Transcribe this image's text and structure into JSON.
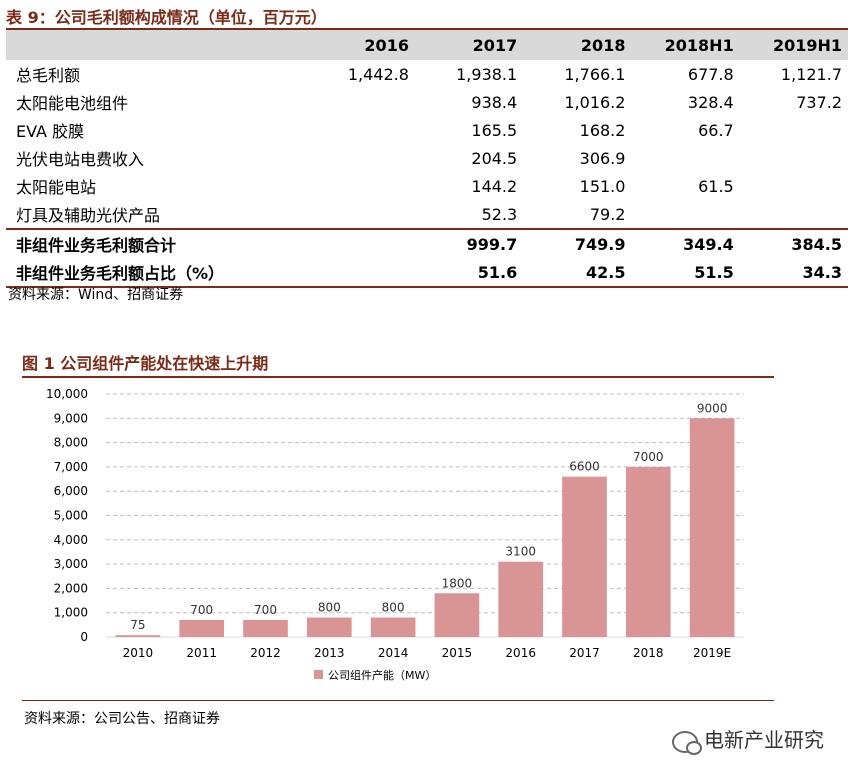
{
  "table": {
    "title": "表 9：公司毛利额构成情况（单位，百万元）",
    "columns": [
      "",
      "2016",
      "2017",
      "2018",
      "2018H1",
      "2019H1"
    ],
    "rows": [
      {
        "label": "总毛利额",
        "values": [
          "1,442.8",
          "1,938.1",
          "1,766.1",
          "677.8",
          "1,121.7"
        ]
      },
      {
        "label": "太阳能电池组件",
        "values": [
          "",
          "938.4",
          "1,016.2",
          "328.4",
          "737.2"
        ]
      },
      {
        "label": "EVA 胶膜",
        "values": [
          "",
          "165.5",
          "168.2",
          "66.7",
          ""
        ]
      },
      {
        "label": "光伏电站电费收入",
        "values": [
          "",
          "204.5",
          "306.9",
          "",
          ""
        ]
      },
      {
        "label": "太阳能电站",
        "values": [
          "",
          "144.2",
          "151.0",
          "61.5",
          ""
        ]
      },
      {
        "label": "灯具及辅助光伏产品",
        "values": [
          "",
          "52.3",
          "79.2",
          "",
          ""
        ]
      }
    ],
    "total_rows": [
      {
        "label": "非组件业务毛利额合计",
        "values": [
          "",
          "999.7",
          "749.9",
          "349.4",
          "384.5"
        ]
      },
      {
        "label": "非组件业务毛利额占比（%）",
        "values": [
          "",
          "51.6",
          "42.5",
          "51.5",
          "34.3"
        ]
      }
    ],
    "source": "资料来源：Wind、招商证券"
  },
  "chart": {
    "title": "图 1 公司组件产能处在快速上升期",
    "source": "资料来源：公司公告、招商证券"
  },
  "watermark": "电新产业研究",
  "colors": {
    "accent": "#7a2b18",
    "bar": "#d99594",
    "header_bg": "#d9d9d9"
  },
  "chart_data": {
    "type": "bar",
    "title": "",
    "categories": [
      "2010",
      "2011",
      "2012",
      "2013",
      "2014",
      "2015",
      "2016",
      "2017",
      "2018",
      "2019E"
    ],
    "series": [
      {
        "name": "公司组件产能（MW）",
        "values": [
          75,
          700,
          700,
          800,
          800,
          1800,
          3100,
          6600,
          7000,
          9000
        ]
      }
    ],
    "xlabel": "",
    "ylabel": "",
    "ylim": [
      0,
      10000
    ],
    "yticks": [
      0,
      1000,
      2000,
      3000,
      4000,
      5000,
      6000,
      7000,
      8000,
      9000,
      10000
    ],
    "ytick_labels": [
      "0",
      "1,000",
      "2,000",
      "3,000",
      "4,000",
      "5,000",
      "6,000",
      "7,000",
      "8,000",
      "9,000",
      "10,000"
    ],
    "data_labels": [
      "75",
      "700",
      "700",
      "800",
      "800",
      "1800",
      "3100",
      "6600",
      "7000",
      "9000"
    ],
    "grid": true,
    "legend": "bottom-center"
  }
}
